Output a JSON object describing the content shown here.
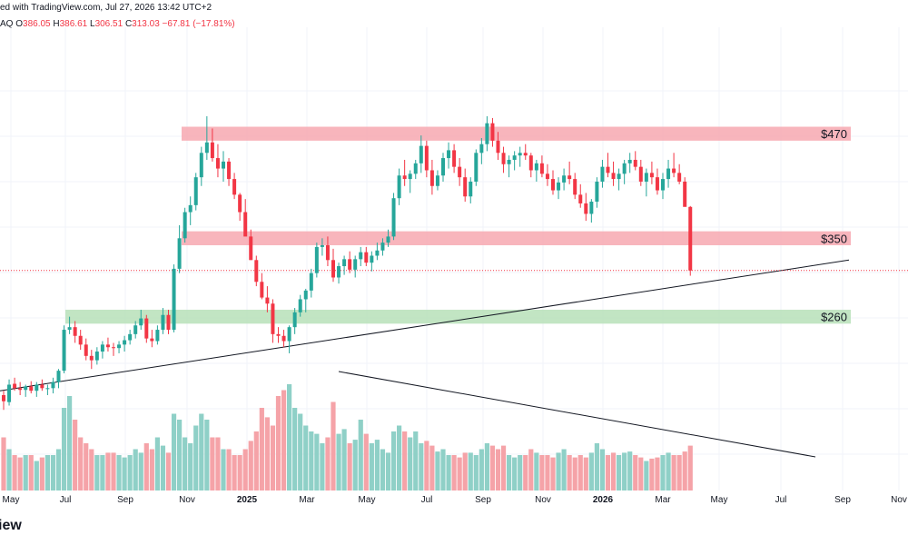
{
  "header": {
    "published_line": "ed with TradingView.com, Jul 27, 2026 13:42 UTC+2",
    "symbol_fragment": "AQ",
    "open_label": "O",
    "open_value": "386.05",
    "high_label": "H",
    "high_value": "386.61",
    "low_label": "L",
    "low_value": "306.51",
    "close_label": "C",
    "close_value": "313.03",
    "change_value": "−67.81 (−17.81%)"
  },
  "brand_text": "iew",
  "colors": {
    "up": "#26a69a",
    "down": "#f23645",
    "up_volume": "#8fd0c7",
    "down_volume": "#f5a3a8",
    "resistance_zone": "#f7a8b0",
    "support_zone": "#b7e1b9"
  },
  "chart_data": {
    "type": "candlestick",
    "interval": "weekly",
    "price_levels": [
      {
        "label": "$470",
        "price": 470,
        "zone": [
          462,
          478
        ],
        "color": "resistance"
      },
      {
        "label": "$350",
        "price": 350,
        "zone": [
          342,
          358
        ],
        "color": "resistance"
      },
      {
        "label": "$260",
        "price": 260,
        "zone": [
          252,
          268
        ],
        "color": "support"
      }
    ],
    "x_tick_labels": [
      "May",
      "Jul",
      "Sep",
      "Nov",
      "2025",
      "Mar",
      "May",
      "Jul",
      "Sep",
      "Nov",
      "2026",
      "Mar",
      "May",
      "Jul",
      "Sep",
      "Nov"
    ],
    "bold_ticks": [
      "2025",
      "2026"
    ],
    "trendline_price": {
      "from_bar": 0,
      "from_price": 175,
      "to_bar": 148,
      "to_price": 325
    },
    "trendline_volume": {
      "from_bar": 60,
      "from_rel": 1.0,
      "to_bar": 148,
      "to_rel": 0.3
    },
    "current_price": 313.03,
    "bars": [
      [
        170,
        175,
        153,
        163,
        0.45
      ],
      [
        162,
        188,
        158,
        182,
        0.35
      ],
      [
        183,
        190,
        175,
        178,
        0.3
      ],
      [
        178,
        185,
        170,
        176,
        0.28
      ],
      [
        176,
        182,
        168,
        180,
        0.3
      ],
      [
        180,
        186,
        172,
        175,
        0.3
      ],
      [
        175,
        185,
        168,
        182,
        0.25
      ],
      [
        182,
        188,
        175,
        178,
        0.28
      ],
      [
        178,
        182,
        170,
        178,
        0.3
      ],
      [
        178,
        190,
        172,
        185,
        0.3
      ],
      [
        185,
        200,
        178,
        198,
        0.35
      ],
      [
        198,
        250,
        195,
        245,
        0.7
      ],
      [
        245,
        260,
        240,
        248,
        0.8
      ],
      [
        248,
        255,
        230,
        238,
        0.6
      ],
      [
        238,
        245,
        222,
        228,
        0.45
      ],
      [
        228,
        235,
        210,
        215,
        0.4
      ],
      [
        215,
        222,
        200,
        210,
        0.35
      ],
      [
        210,
        225,
        205,
        220,
        0.3
      ],
      [
        220,
        232,
        212,
        228,
        0.3
      ],
      [
        228,
        236,
        220,
        225,
        0.32
      ],
      [
        225,
        230,
        215,
        224,
        0.32
      ],
      [
        224,
        232,
        218,
        228,
        0.3
      ],
      [
        228,
        238,
        220,
        233,
        0.28
      ],
      [
        233,
        245,
        228,
        240,
        0.3
      ],
      [
        240,
        255,
        235,
        250,
        0.35
      ],
      [
        250,
        268,
        245,
        258,
        0.32
      ],
      [
        258,
        262,
        230,
        235,
        0.4
      ],
      [
        235,
        245,
        225,
        232,
        0.35
      ],
      [
        232,
        250,
        228,
        245,
        0.45
      ],
      [
        245,
        270,
        240,
        262,
        0.38
      ],
      [
        262,
        268,
        240,
        245,
        0.32
      ],
      [
        245,
        320,
        242,
        315,
        0.65
      ],
      [
        315,
        365,
        310,
        350,
        0.6
      ],
      [
        350,
        385,
        345,
        380,
        0.45
      ],
      [
        380,
        398,
        365,
        388,
        0.4
      ],
      [
        388,
        425,
        382,
        420,
        0.55
      ],
      [
        420,
        455,
        410,
        448,
        0.65
      ],
      [
        448,
        490,
        440,
        460,
        0.6
      ],
      [
        460,
        476,
        438,
        442,
        0.45
      ],
      [
        442,
        458,
        420,
        430,
        0.45
      ],
      [
        430,
        450,
        415,
        438,
        0.35
      ],
      [
        438,
        442,
        410,
        418,
        0.35
      ],
      [
        418,
        425,
        395,
        400,
        0.3
      ],
      [
        400,
        402,
        370,
        380,
        0.3
      ],
      [
        380,
        395,
        368,
        352,
        0.35
      ],
      [
        352,
        360,
        325,
        325,
        0.42
      ],
      [
        325,
        330,
        295,
        300,
        0.5
      ],
      [
        300,
        310,
        280,
        282,
        0.7
      ],
      [
        282,
        295,
        265,
        275,
        0.62
      ],
      [
        275,
        280,
        230,
        240,
        0.55
      ],
      [
        240,
        248,
        230,
        238,
        0.8
      ],
      [
        238,
        245,
        225,
        232,
        0.85
      ],
      [
        232,
        250,
        218,
        248,
        0.9
      ],
      [
        248,
        270,
        240,
        265,
        0.7
      ],
      [
        265,
        285,
        260,
        280,
        0.65
      ],
      [
        280,
        292,
        265,
        290,
        0.55
      ],
      [
        290,
        315,
        282,
        310,
        0.5
      ],
      [
        310,
        345,
        305,
        340,
        0.48
      ],
      [
        340,
        350,
        330,
        342,
        0.4
      ],
      [
        342,
        352,
        318,
        325,
        0.45
      ],
      [
        325,
        338,
        300,
        305,
        0.75
      ],
      [
        305,
        322,
        298,
        318,
        0.48
      ],
      [
        318,
        330,
        308,
        326,
        0.52
      ],
      [
        326,
        335,
        310,
        314,
        0.4
      ],
      [
        314,
        330,
        305,
        326,
        0.43
      ],
      [
        326,
        340,
        318,
        334,
        0.6
      ],
      [
        334,
        340,
        318,
        322,
        0.48
      ],
      [
        322,
        335,
        312,
        330,
        0.4
      ],
      [
        330,
        345,
        325,
        336,
        0.43
      ],
      [
        336,
        350,
        330,
        345,
        0.35
      ],
      [
        345,
        360,
        340,
        352,
        0.32
      ],
      [
        352,
        402,
        348,
        396,
        0.5
      ],
      [
        396,
        430,
        388,
        422,
        0.55
      ],
      [
        422,
        440,
        410,
        418,
        0.5
      ],
      [
        418,
        428,
        402,
        424,
        0.45
      ],
      [
        424,
        440,
        418,
        436,
        0.5
      ],
      [
        436,
        468,
        425,
        456,
        0.4
      ],
      [
        456,
        462,
        420,
        428,
        0.42
      ],
      [
        428,
        440,
        400,
        410,
        0.38
      ],
      [
        410,
        428,
        405,
        422,
        0.33
      ],
      [
        422,
        448,
        415,
        442,
        0.35
      ],
      [
        442,
        460,
        430,
        451,
        0.3
      ],
      [
        451,
        458,
        425,
        432,
        0.3
      ],
      [
        432,
        442,
        410,
        420,
        0.28
      ],
      [
        420,
        430,
        392,
        398,
        0.32
      ],
      [
        398,
        420,
        390,
        415,
        0.32
      ],
      [
        415,
        452,
        410,
        448,
        0.3
      ],
      [
        448,
        465,
        435,
        458,
        0.35
      ],
      [
        458,
        490,
        450,
        482,
        0.4
      ],
      [
        482,
        488,
        455,
        462,
        0.38
      ],
      [
        462,
        472,
        440,
        448,
        0.35
      ],
      [
        448,
        455,
        425,
        435,
        0.38
      ],
      [
        435,
        445,
        420,
        440,
        0.3
      ],
      [
        440,
        450,
        428,
        445,
        0.28
      ],
      [
        445,
        455,
        432,
        448,
        0.3
      ],
      [
        448,
        458,
        440,
        445,
        0.3
      ],
      [
        445,
        448,
        420,
        428,
        0.35
      ],
      [
        428,
        440,
        415,
        436,
        0.32
      ],
      [
        436,
        445,
        420,
        424,
        0.3
      ],
      [
        424,
        435,
        410,
        418,
        0.3
      ],
      [
        418,
        428,
        400,
        405,
        0.28
      ],
      [
        405,
        420,
        395,
        414,
        0.32
      ],
      [
        414,
        430,
        405,
        422,
        0.35
      ],
      [
        422,
        438,
        412,
        418,
        0.3
      ],
      [
        418,
        425,
        395,
        400,
        0.28
      ],
      [
        400,
        412,
        385,
        390,
        0.3
      ],
      [
        390,
        402,
        370,
        378,
        0.28
      ],
      [
        378,
        395,
        368,
        392,
        0.32
      ],
      [
        392,
        420,
        385,
        415,
        0.4
      ],
      [
        415,
        440,
        408,
        432,
        0.35
      ],
      [
        432,
        448,
        420,
        425,
        0.3
      ],
      [
        425,
        438,
        410,
        418,
        0.32
      ],
      [
        418,
        430,
        405,
        424,
        0.3
      ],
      [
        424,
        440,
        412,
        436,
        0.32
      ],
      [
        436,
        448,
        425,
        440,
        0.33
      ],
      [
        440,
        450,
        428,
        432,
        0.3
      ],
      [
        432,
        440,
        410,
        415,
        0.28
      ],
      [
        415,
        430,
        398,
        425,
        0.25
      ],
      [
        425,
        438,
        412,
        420,
        0.27
      ],
      [
        420,
        430,
        400,
        405,
        0.28
      ],
      [
        405,
        425,
        395,
        418,
        0.3
      ],
      [
        418,
        440,
        408,
        430,
        0.32
      ],
      [
        430,
        448,
        420,
        425,
        0.3
      ],
      [
        425,
        435,
        412,
        415,
        0.3
      ],
      [
        415,
        420,
        388,
        386,
        0.33
      ],
      [
        386,
        387,
        307,
        313,
        0.38
      ]
    ]
  }
}
